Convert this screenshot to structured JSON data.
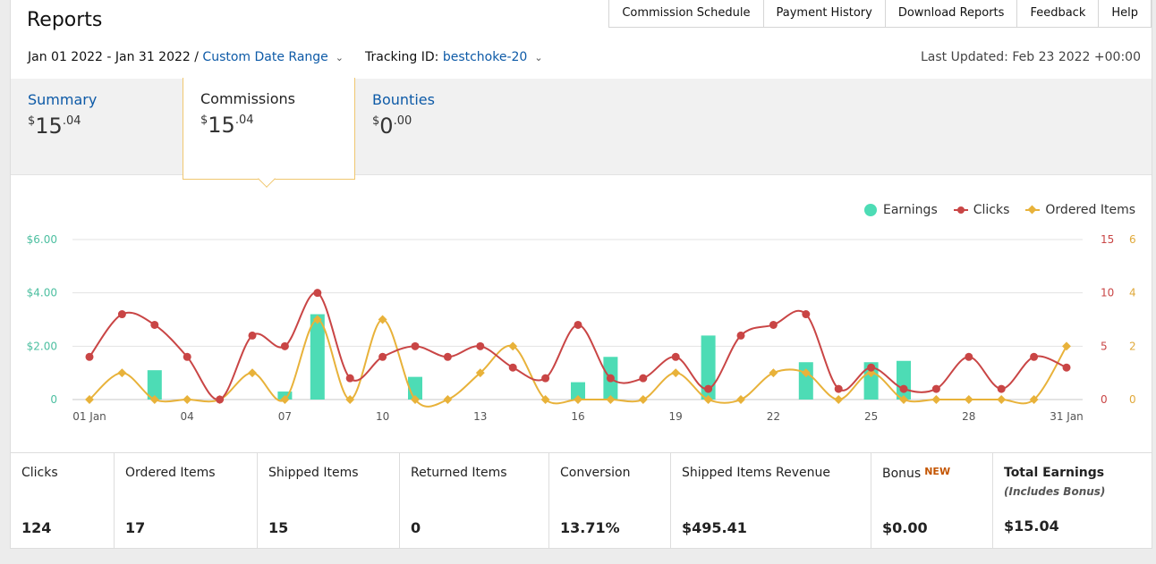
{
  "header": {
    "title": "Reports",
    "nav": [
      "Commission Schedule",
      "Payment History",
      "Download Reports",
      "Feedback",
      "Help"
    ]
  },
  "filters": {
    "date_range": "Jan 01 2022 - Jan 31 2022 /",
    "date_mode": "Custom Date Range",
    "tracking_label": "Tracking ID:",
    "tracking_id": "bestchoke-20",
    "last_updated": "Last Updated: Feb 23 2022 +00:00"
  },
  "tabs": {
    "summary": {
      "label": "Summary",
      "currency": "$",
      "whole": "15",
      "cents": ".04"
    },
    "commissions": {
      "label": "Commissions",
      "currency": "$",
      "whole": "15",
      "cents": ".04"
    },
    "bounties": {
      "label": "Bounties",
      "currency": "$",
      "whole": "0",
      "cents": ".00"
    }
  },
  "colors": {
    "earnings": "#4ddcb5",
    "clicks": "#c94545",
    "ordered": "#e8b23a",
    "link": "#0d5aa7",
    "active_tab_border": "#f0c770"
  },
  "chart_data": {
    "type": "bar",
    "legend": [
      "Earnings",
      "Clicks",
      "Ordered Items"
    ],
    "legend_position": "top-right",
    "x_tick_labels": [
      "01 Jan",
      "04",
      "07",
      "10",
      "13",
      "16",
      "19",
      "22",
      "25",
      "28",
      "31 Jan"
    ],
    "x_tick_days": [
      1,
      4,
      7,
      10,
      13,
      16,
      19,
      22,
      25,
      28,
      31
    ],
    "y_left_ticks": [
      "0",
      "$2.00",
      "$4.00",
      "$6.00"
    ],
    "y_left_range": [
      0,
      6
    ],
    "y_clicks_ticks": [
      "0",
      "5",
      "10",
      "15"
    ],
    "y_clicks_range": [
      0,
      15
    ],
    "y_ordered_ticks": [
      "0",
      "2",
      "4",
      "6"
    ],
    "y_ordered_range": [
      0,
      6
    ],
    "grid": true,
    "series": [
      {
        "name": "Earnings",
        "type": "bar",
        "values": [
          0,
          0,
          1.1,
          0,
          0,
          0,
          0.3,
          3.2,
          0,
          0,
          0.85,
          0,
          0,
          0,
          0,
          0.65,
          1.6,
          0,
          0,
          2.4,
          0,
          0,
          1.4,
          0,
          1.4,
          1.45,
          0,
          0,
          0,
          0,
          0
        ]
      },
      {
        "name": "Clicks",
        "type": "line",
        "values": [
          4,
          8,
          7,
          4,
          0,
          6,
          5,
          10,
          2,
          4,
          5,
          4,
          5,
          3,
          2,
          7,
          2,
          2,
          4,
          1,
          6,
          7,
          8,
          1,
          3,
          1,
          1,
          4,
          1,
          4,
          3
        ]
      },
      {
        "name": "Ordered Items",
        "type": "line",
        "values": [
          0,
          1,
          0,
          0,
          0,
          1,
          0,
          3,
          0,
          3,
          0,
          0,
          1,
          2,
          0,
          0,
          0,
          0,
          1,
          0,
          0,
          1,
          1,
          0,
          1,
          0,
          0,
          0,
          0,
          0,
          2
        ]
      }
    ]
  },
  "stats": [
    {
      "label": "Clicks",
      "value": "124"
    },
    {
      "label": "Ordered Items",
      "value": "17"
    },
    {
      "label": "Shipped Items",
      "value": "15"
    },
    {
      "label": "Returned Items",
      "value": "0"
    },
    {
      "label": "Conversion",
      "value": "13.71%"
    },
    {
      "label": "Shipped Items Revenue",
      "value": "$495.41"
    },
    {
      "label": "Bonus",
      "badge": "NEW",
      "value": "$0.00"
    },
    {
      "label": "Total Earnings",
      "sub": "(Includes Bonus)",
      "value": "$15.04"
    }
  ]
}
